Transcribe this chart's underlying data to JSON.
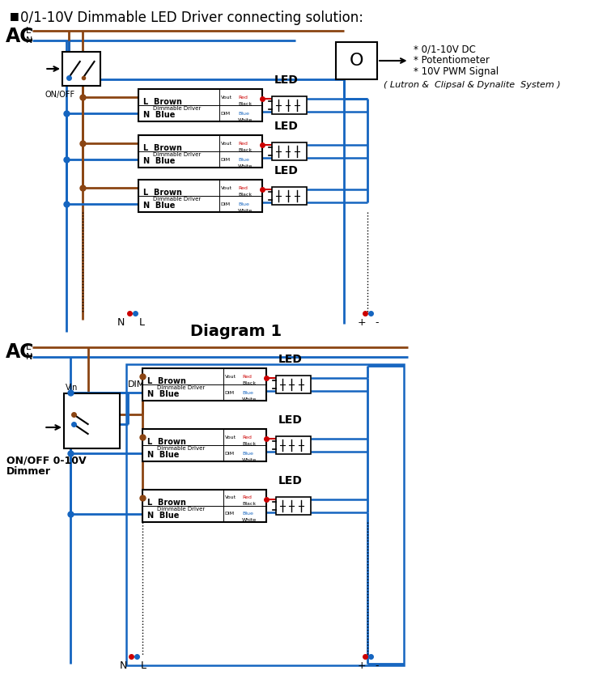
{
  "title": "0/1-10V Dimmable LED Driver connecting solution:",
  "bg_color": "#ffffff",
  "brown": "#8B4513",
  "blue": "#1565C0",
  "black": "#000000",
  "red": "#CC0000",
  "orange_brown": "#8B4513",
  "diagram1_label": "Diagram 1",
  "notes": [
    "* 0/1-10V DC",
    "* Potentiometer",
    "* 10V PWM Signal",
    "( Lutron &  Clipsal & Dynalite  System )"
  ]
}
